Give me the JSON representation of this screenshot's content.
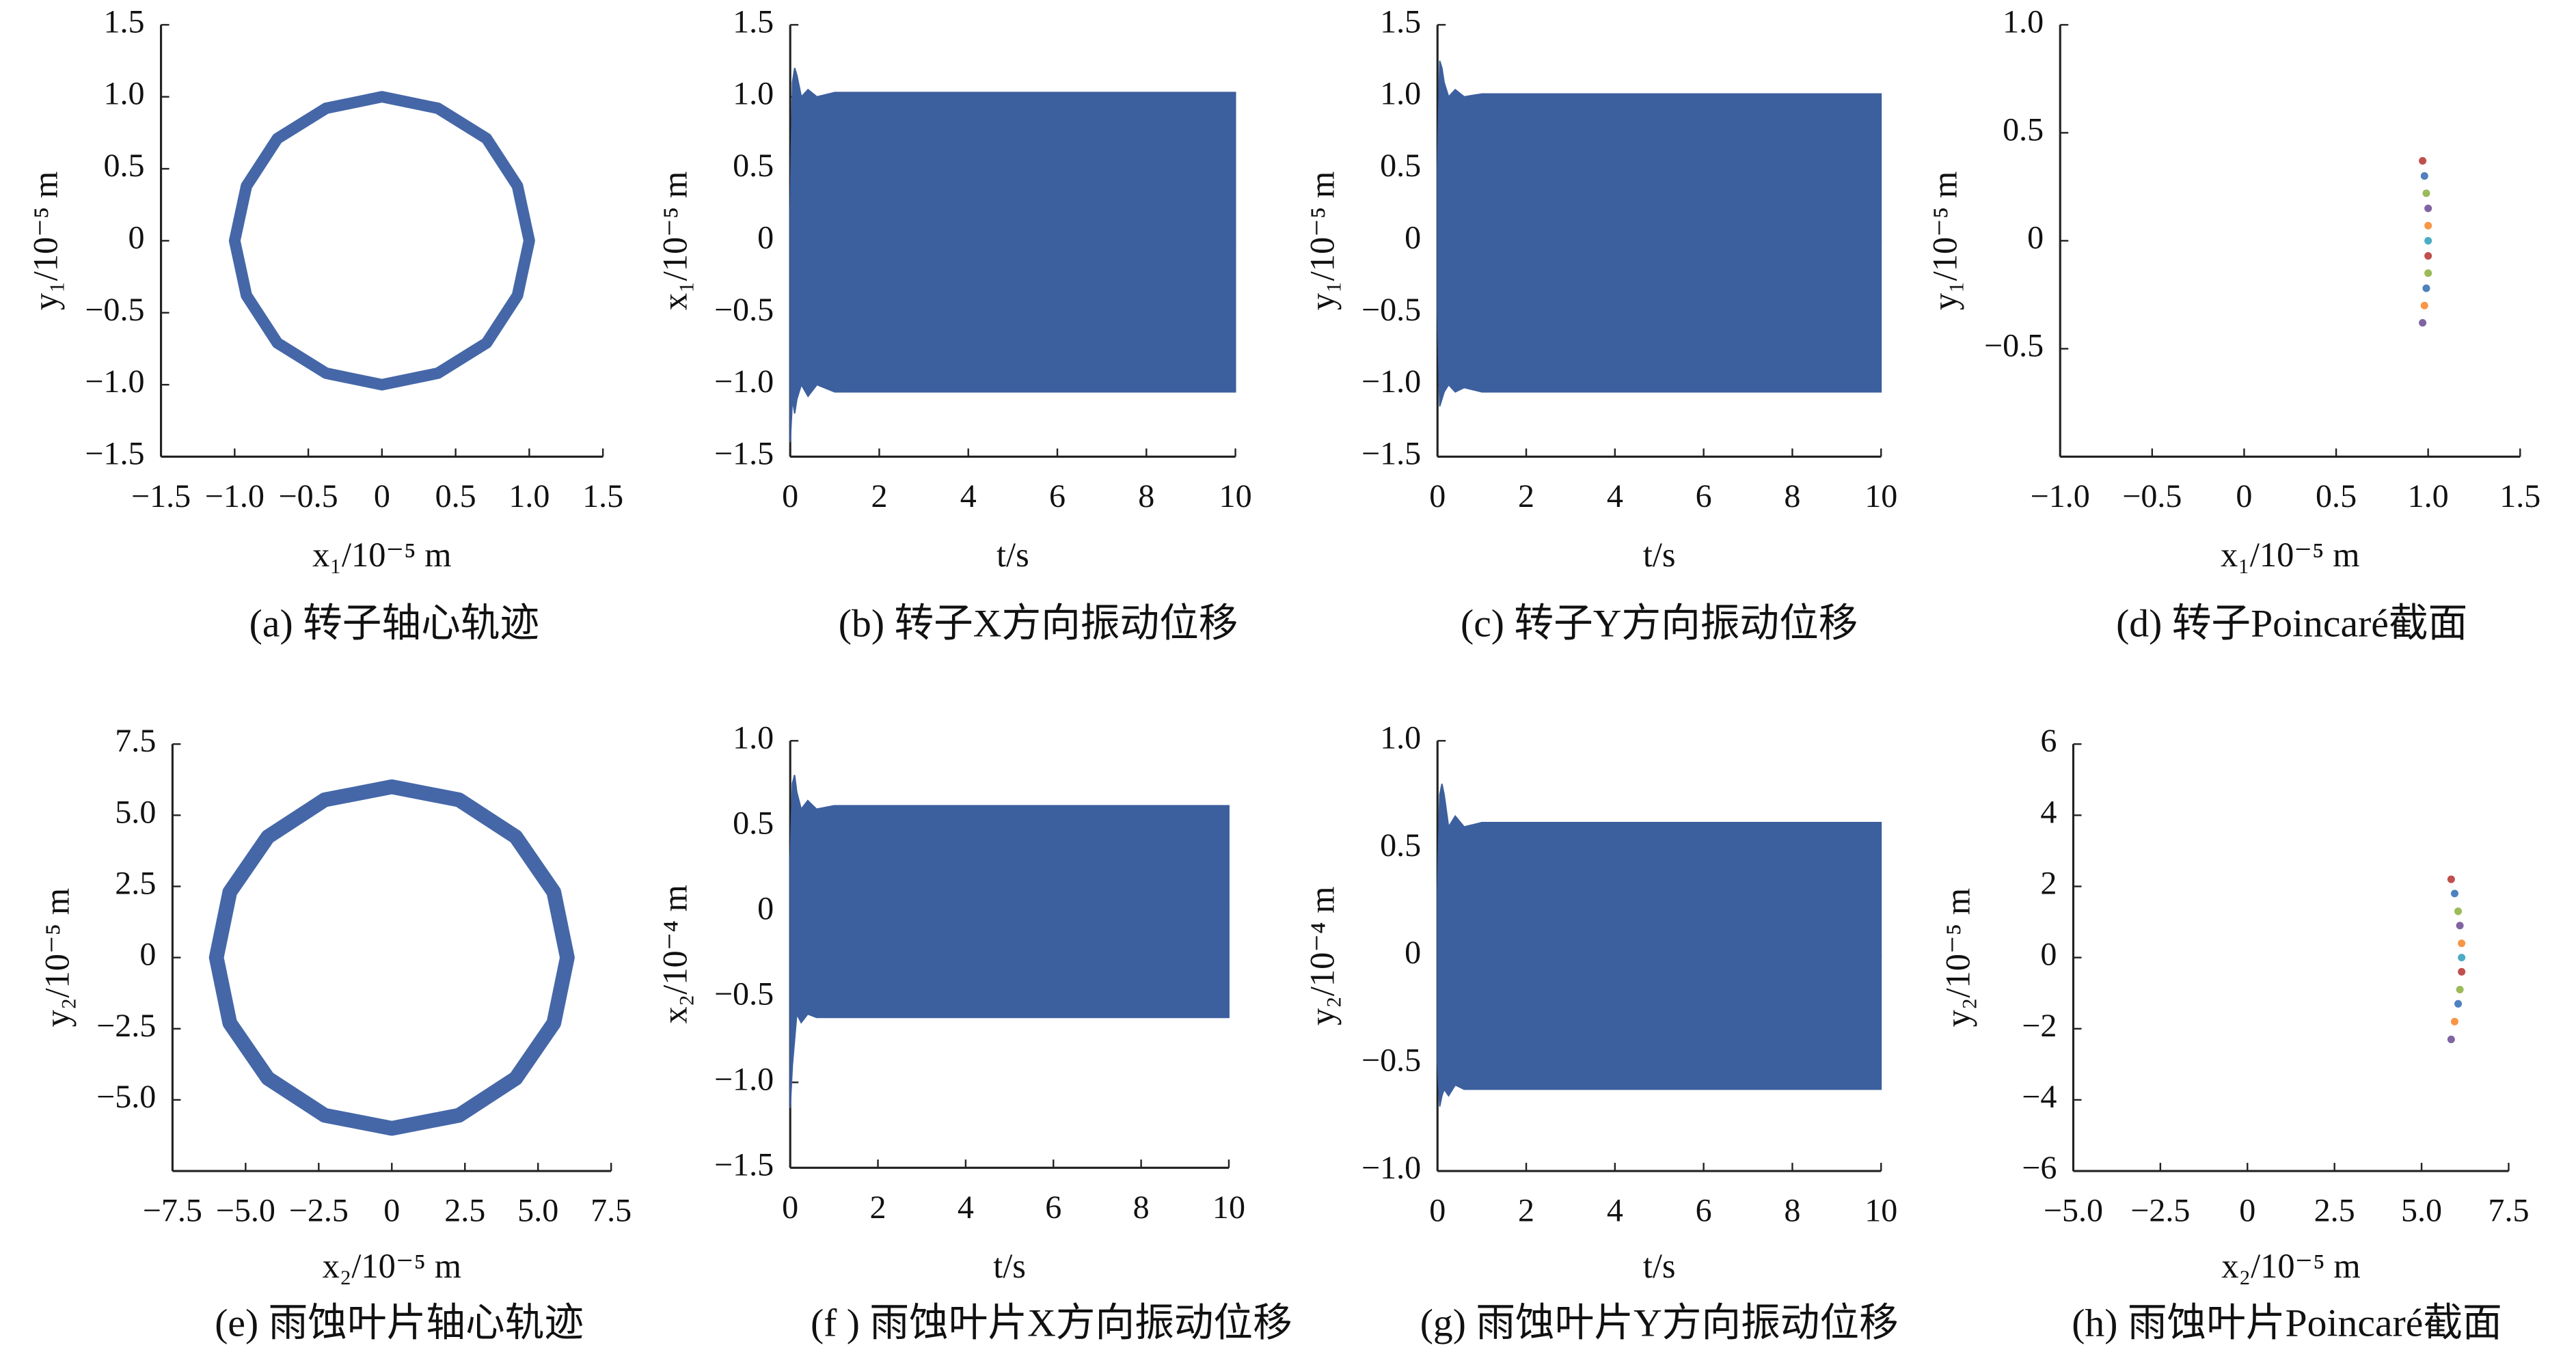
{
  "chart_data": [
    {
      "type": "orbit",
      "caption": "(a)  转子轴心轨迹",
      "xlabel": "x₁/10⁻⁵ m",
      "ylabel": "y₁/10⁻⁵ m",
      "color": "#4567a8",
      "xlim": [
        -1.5,
        1.5
      ],
      "ylim": [
        -1.5,
        1.5
      ],
      "xticks": [
        {
          "value": -1.5,
          "label": "−1.5"
        },
        {
          "value": -1.0,
          "label": "−1.0"
        },
        {
          "value": -0.5,
          "label": "−0.5"
        },
        0,
        0.5,
        {
          "value": 1.0,
          "label": "1.0"
        },
        1.5
      ],
      "yticks": [
        {
          "value": -1.5,
          "label": "−1.5"
        },
        {
          "value": -1.0,
          "label": "−1.0"
        },
        {
          "value": -0.5,
          "label": "−0.5"
        },
        0,
        0.5,
        {
          "value": 1.0,
          "label": "1.0"
        },
        1.5
      ],
      "x": [
        1,
        0.92,
        0.71,
        0.38,
        0,
        -0.38,
        -0.71,
        -0.92,
        -1,
        -0.92,
        -0.71,
        -0.38,
        0,
        0.38,
        0.71,
        0.92
      ],
      "y": [
        0,
        0.38,
        0.71,
        0.92,
        1,
        0.92,
        0.71,
        0.38,
        0,
        -0.38,
        -0.71,
        -0.92,
        -1,
        -0.92,
        -0.71,
        -0.38
      ]
    },
    {
      "type": "band",
      "caption": "(b)  转子X方向振动位移",
      "xlabel": "t/s",
      "ylabel": "x₁/10⁻⁵ m",
      "color": "#3c5f9e",
      "xlim": [
        0,
        10
      ],
      "ylim": [
        -1.5,
        1.5
      ],
      "xticks": [
        0,
        2,
        4,
        6,
        8,
        10
      ],
      "yticks": [
        {
          "value": -1.5,
          "label": "−1.5"
        },
        {
          "value": -1.0,
          "label": "−1.0"
        },
        {
          "value": -0.5,
          "label": "−0.5"
        },
        0,
        0.5,
        {
          "value": 1.0,
          "label": "1.0"
        },
        1.5
      ],
      "x": [
        0,
        0.05,
        0.1,
        0.15,
        0.25,
        0.4,
        0.6,
        1,
        2,
        3,
        4,
        5,
        6,
        7,
        8,
        9,
        10
      ],
      "upper": [
        0.2,
        1.1,
        1.2,
        1.15,
        1.0,
        1.05,
        1.0,
        1.03,
        1.03,
        1.03,
        1.03,
        1.03,
        1.03,
        1.03,
        1.03,
        1.03,
        1.03
      ],
      "lower": [
        -1.4,
        -1.1,
        -1.2,
        -1.1,
        -1.0,
        -1.08,
        -1.0,
        -1.05,
        -1.05,
        -1.05,
        -1.05,
        -1.05,
        -1.05,
        -1.05,
        -1.05,
        -1.05,
        -1.05
      ]
    },
    {
      "type": "band",
      "caption": "(c)  转子Y方向振动位移",
      "xlabel": "t/s",
      "ylabel": "y₁/10⁻⁵ m",
      "color": "#3c5f9e",
      "xlim": [
        0,
        10
      ],
      "ylim": [
        -1.5,
        1.5
      ],
      "xticks": [
        0,
        2,
        4,
        6,
        8,
        10
      ],
      "yticks": [
        {
          "value": -1.5,
          "label": "−1.5"
        },
        {
          "value": -1.0,
          "label": "−1.0"
        },
        {
          "value": -0.5,
          "label": "−0.5"
        },
        0,
        0.5,
        {
          "value": 1.0,
          "label": "1.0"
        },
        1.5
      ],
      "x": [
        0,
        0.05,
        0.1,
        0.15,
        0.25,
        0.4,
        0.6,
        1,
        2,
        3,
        4,
        5,
        6,
        7,
        8,
        9,
        10
      ],
      "upper": [
        0.5,
        1.25,
        1.2,
        1.1,
        1.0,
        1.05,
        1.0,
        1.02,
        1.02,
        1.02,
        1.02,
        1.02,
        1.02,
        1.02,
        1.02,
        1.02,
        1.02
      ],
      "lower": [
        -0.5,
        -1.15,
        -1.1,
        -1.05,
        -1.0,
        -1.05,
        -1.02,
        -1.05,
        -1.05,
        -1.05,
        -1.05,
        -1.05,
        -1.05,
        -1.05,
        -1.05,
        -1.05,
        -1.05
      ]
    },
    {
      "type": "scatter",
      "caption": "(d)  转子Poincaré截面",
      "xlabel": "x₁/10⁻⁵ m",
      "ylabel": "y₁/10⁻⁵ m",
      "xlim": [
        -1.0,
        1.5
      ],
      "ylim": [
        -1.0,
        1.0
      ],
      "xticks": [
        {
          "value": -1.0,
          "label": "−1.0"
        },
        {
          "value": -0.5,
          "label": "−0.5"
        },
        0,
        0.5,
        {
          "value": 1.0,
          "label": "1.0"
        },
        1.5
      ],
      "yticks": [
        {
          "value": -0.5,
          "label": "−0.5"
        },
        0,
        0.5,
        {
          "value": 1.0,
          "label": "1.0"
        }
      ],
      "x": [
        0.97,
        0.98,
        0.99,
        1.0,
        1.0,
        1.0,
        1.0,
        1.0,
        0.99,
        0.98,
        0.97
      ],
      "y": [
        0.37,
        0.3,
        0.22,
        0.15,
        0.07,
        0,
        -0.07,
        -0.15,
        -0.22,
        -0.3,
        -0.38
      ],
      "colors": [
        "#c0504d",
        "#4f81bd",
        "#9bbb59",
        "#8064a2",
        "#f79646",
        "#4bacc6",
        "#c0504d",
        "#9bbb59",
        "#4f81bd",
        "#f79646",
        "#8064a2"
      ]
    },
    {
      "type": "orbit",
      "caption": "(e)  雨蚀叶片轴心轨迹",
      "xlabel": "x₂/10⁻⁵ m",
      "ylabel": "y₂/10⁻⁵ m",
      "color": "#4567a8",
      "xlim": [
        -7.5,
        7.5
      ],
      "ylim": [
        -7.5,
        7.5
      ],
      "xticks": [
        {
          "value": -7.5,
          "label": "−7.5"
        },
        {
          "value": -5.0,
          "label": "−5.0"
        },
        {
          "value": -2.5,
          "label": "−2.5"
        },
        0,
        2.5,
        {
          "value": 5.0,
          "label": "5.0"
        },
        7.5
      ],
      "yticks": [
        {
          "value": -5.0,
          "label": "−5.0"
        },
        {
          "value": -2.5,
          "label": "−2.5"
        },
        0,
        2.5,
        {
          "value": 5.0,
          "label": "5.0"
        },
        7.5
      ],
      "x": [
        6,
        5.54,
        4.24,
        2.3,
        0,
        -2.3,
        -4.24,
        -5.54,
        -6,
        -5.54,
        -4.24,
        -2.3,
        0,
        2.3,
        4.24,
        5.54
      ],
      "y": [
        0,
        2.3,
        4.24,
        5.54,
        6,
        5.54,
        4.24,
        2.3,
        0,
        -2.3,
        -4.24,
        -5.54,
        -6,
        -5.54,
        -4.24,
        -2.3
      ]
    },
    {
      "type": "band",
      "caption": "(f )  雨蚀叶片X方向振动位移",
      "xlabel": "t/s",
      "ylabel": "x₂/10⁻⁴ m",
      "color": "#3c5f9e",
      "xlim": [
        0,
        10
      ],
      "ylim": [
        -1.5,
        1.0
      ],
      "xticks": [
        0,
        2,
        4,
        6,
        8,
        10
      ],
      "yticks": [
        {
          "value": -1.5,
          "label": "−1.5"
        },
        {
          "value": -1.0,
          "label": "−1.0"
        },
        {
          "value": -0.5,
          "label": "−0.5"
        },
        0,
        0.5,
        {
          "value": 1.0,
          "label": "1.0"
        }
      ],
      "x": [
        0,
        0.05,
        0.1,
        0.15,
        0.25,
        0.4,
        0.6,
        1,
        2,
        3,
        4,
        5,
        6,
        7,
        8,
        9,
        10
      ],
      "upper": [
        0.3,
        0.75,
        0.8,
        0.7,
        0.6,
        0.65,
        0.6,
        0.62,
        0.62,
        0.62,
        0.62,
        0.62,
        0.62,
        0.62,
        0.62,
        0.62,
        0.62
      ],
      "lower": [
        -1.15,
        -0.9,
        -0.75,
        -0.6,
        -0.65,
        -0.6,
        -0.62,
        -0.62,
        -0.62,
        -0.62,
        -0.62,
        -0.62,
        -0.62,
        -0.62,
        -0.62,
        -0.62,
        -0.62
      ]
    },
    {
      "type": "band",
      "caption": "(g)  雨蚀叶片Y方向振动位移",
      "xlabel": "t/s",
      "ylabel": "y₂/10⁻⁴ m",
      "color": "#3c5f9e",
      "xlim": [
        0,
        10
      ],
      "ylim": [
        -1.0,
        1.0
      ],
      "xticks": [
        0,
        2,
        4,
        6,
        8,
        10
      ],
      "yticks": [
        {
          "value": -1.0,
          "label": "−1.0"
        },
        {
          "value": -0.5,
          "label": "−0.5"
        },
        0,
        0.5,
        {
          "value": 1.0,
          "label": "1.0"
        }
      ],
      "x": [
        0,
        0.05,
        0.1,
        0.15,
        0.25,
        0.4,
        0.6,
        1,
        2,
        3,
        4,
        5,
        6,
        7,
        8,
        9,
        10
      ],
      "upper": [
        0.3,
        0.75,
        0.8,
        0.75,
        0.6,
        0.65,
        0.6,
        0.62,
        0.62,
        0.62,
        0.62,
        0.62,
        0.62,
        0.62,
        0.62,
        0.62,
        0.62
      ],
      "lower": [
        -0.5,
        -0.7,
        -0.65,
        -0.62,
        -0.65,
        -0.6,
        -0.62,
        -0.62,
        -0.62,
        -0.62,
        -0.62,
        -0.62,
        -0.62,
        -0.62,
        -0.62,
        -0.62,
        -0.62
      ]
    },
    {
      "type": "scatter",
      "caption": "(h)  雨蚀叶片Poincaré截面",
      "xlabel": "x₂/10⁻⁵ m",
      "ylabel": "y₂/10⁻⁵ m",
      "xlim": [
        -5.0,
        7.5
      ],
      "ylim": [
        -6,
        6
      ],
      "xticks": [
        {
          "value": -5.0,
          "label": "−5.0"
        },
        {
          "value": -2.5,
          "label": "−2.5"
        },
        0,
        2.5,
        {
          "value": 5.0,
          "label": "5.0"
        },
        7.5
      ],
      "yticks": [
        {
          "value": -6,
          "label": "−6"
        },
        {
          "value": -4,
          "label": "−4"
        },
        {
          "value": -2,
          "label": "−2"
        },
        0,
        2,
        4,
        6
      ],
      "x": [
        5.85,
        5.95,
        6.05,
        6.1,
        6.15,
        6.15,
        6.15,
        6.1,
        6.05,
        5.95,
        5.85
      ],
      "y": [
        2.2,
        1.8,
        1.3,
        0.9,
        0.4,
        0,
        -0.4,
        -0.9,
        -1.3,
        -1.8,
        -2.3
      ],
      "colors": [
        "#c0504d",
        "#4f81bd",
        "#9bbb59",
        "#8064a2",
        "#f79646",
        "#4bacc6",
        "#c0504d",
        "#9bbb59",
        "#4f81bd",
        "#f79646",
        "#8064a2"
      ]
    }
  ]
}
